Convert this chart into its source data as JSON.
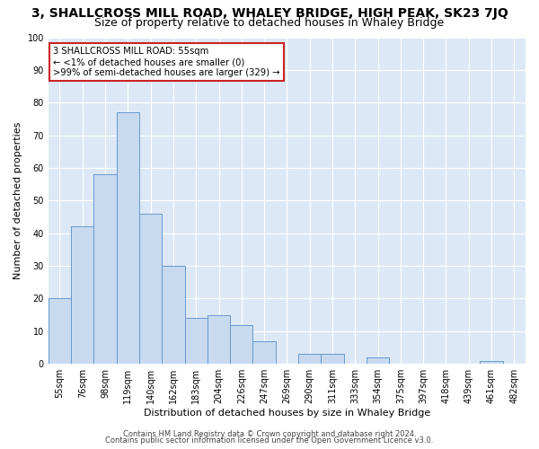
{
  "title": "3, SHALLCROSS MILL ROAD, WHALEY BRIDGE, HIGH PEAK, SK23 7JQ",
  "subtitle": "Size of property relative to detached houses in Whaley Bridge",
  "xlabel": "Distribution of detached houses by size in Whaley Bridge",
  "ylabel": "Number of detached properties",
  "bar_color": "#c8daf0",
  "bar_edge_color": "#6699cc",
  "highlight_color": "#c8daf0",
  "highlight_edge_color": "#cc2222",
  "annotation_box_color": "#cc2222",
  "categories": [
    "55sqm",
    "76sqm",
    "98sqm",
    "119sqm",
    "140sqm",
    "162sqm",
    "183sqm",
    "204sqm",
    "226sqm",
    "247sqm",
    "269sqm",
    "290sqm",
    "311sqm",
    "333sqm",
    "354sqm",
    "375sqm",
    "397sqm",
    "418sqm",
    "439sqm",
    "461sqm",
    "482sqm"
  ],
  "values": [
    20,
    42,
    58,
    77,
    46,
    30,
    14,
    15,
    12,
    7,
    0,
    3,
    3,
    0,
    2,
    0,
    0,
    0,
    0,
    1,
    0
  ],
  "highlight_index": 0,
  "annotation_title": "3 SHALLCROSS MILL ROAD: 55sqm",
  "annotation_line1": "← <1% of detached houses are smaller (0)",
  "annotation_line2": ">99% of semi-detached houses are larger (329) →",
  "ylim": [
    0,
    100
  ],
  "yticks": [
    0,
    10,
    20,
    30,
    40,
    50,
    60,
    70,
    80,
    90,
    100
  ],
  "footnote1": "Contains HM Land Registry data © Crown copyright and database right 2024.",
  "footnote2": "Contains public sector information licensed under the Open Government Licence v3.0.",
  "fig_background": "#ffffff",
  "plot_background": "#dce8f5",
  "grid_color": "#ffffff",
  "title_fontsize": 10,
  "subtitle_fontsize": 9,
  "label_fontsize": 8,
  "tick_fontsize": 7,
  "footnote_fontsize": 6
}
